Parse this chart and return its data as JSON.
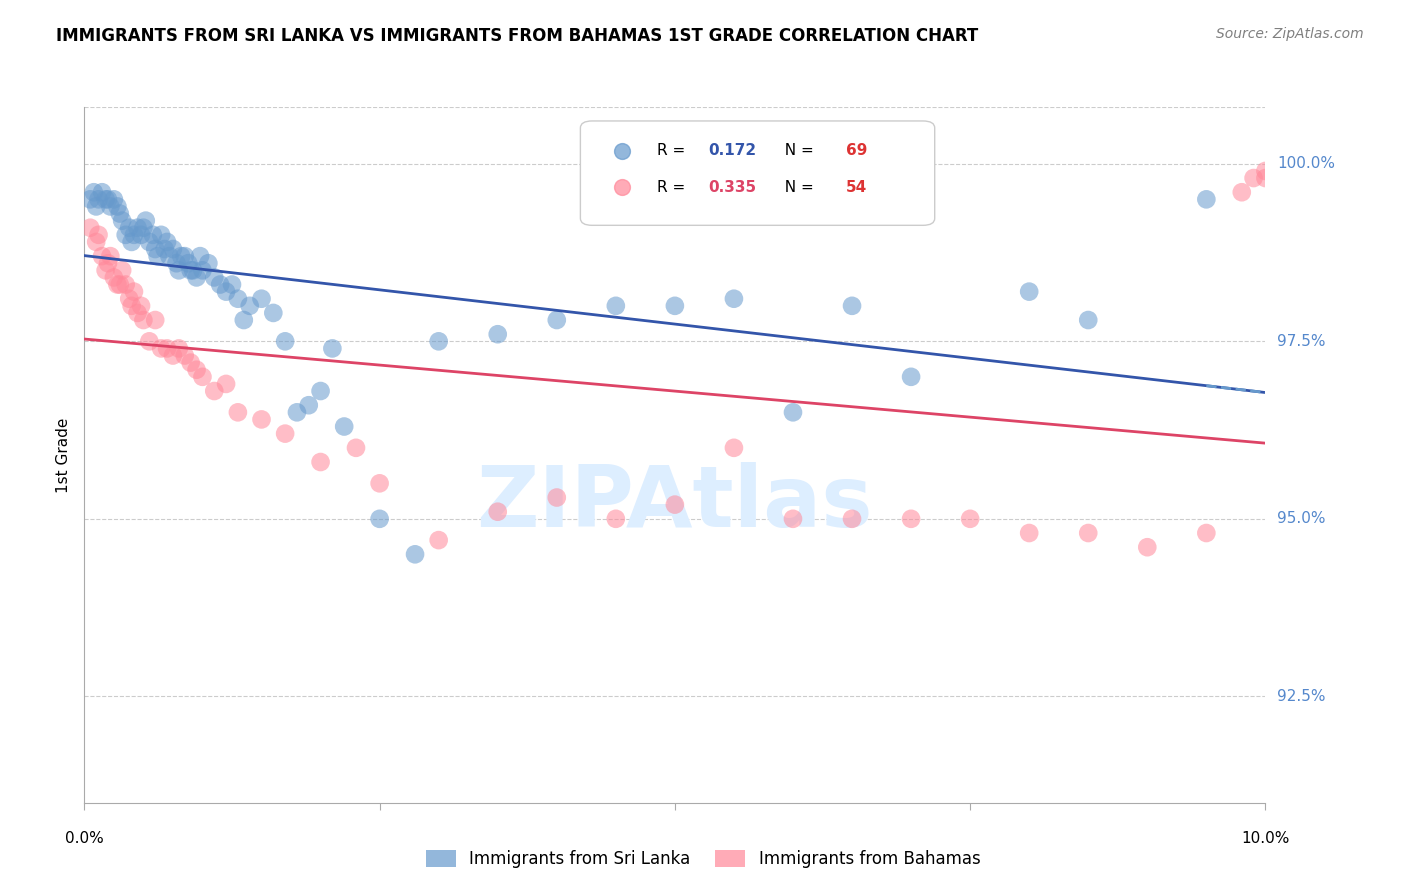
{
  "title": "IMMIGRANTS FROM SRI LANKA VS IMMIGRANTS FROM BAHAMAS 1ST GRADE CORRELATION CHART",
  "source": "Source: ZipAtlas.com",
  "ylabel": "1st Grade",
  "xlim": [
    0.0,
    10.0
  ],
  "ylim": [
    91.0,
    100.8
  ],
  "sri_lanka_R": 0.172,
  "sri_lanka_N": 69,
  "bahamas_R": 0.335,
  "bahamas_N": 54,
  "sri_lanka_color": "#6699CC",
  "bahamas_color": "#FF8899",
  "sri_lanka_line_color": "#3355AA",
  "bahamas_line_color": "#DD4466",
  "watermark_color": "#DDEEFF",
  "watermark_text": "ZIPAtlas",
  "yticks": [
    92.5,
    95.0,
    97.5,
    100.0
  ],
  "sri_lanka_x": [
    0.05,
    0.08,
    0.1,
    0.12,
    0.15,
    0.18,
    0.2,
    0.22,
    0.25,
    0.28,
    0.3,
    0.32,
    0.35,
    0.38,
    0.4,
    0.42,
    0.45,
    0.48,
    0.5,
    0.52,
    0.55,
    0.58,
    0.6,
    0.62,
    0.65,
    0.68,
    0.7,
    0.72,
    0.75,
    0.78,
    0.8,
    0.82,
    0.85,
    0.88,
    0.9,
    0.92,
    0.95,
    0.98,
    1.0,
    1.05,
    1.1,
    1.15,
    1.2,
    1.25,
    1.3,
    1.35,
    1.4,
    1.5,
    1.6,
    1.7,
    1.8,
    1.9,
    2.0,
    2.1,
    2.2,
    2.5,
    2.8,
    3.0,
    3.5,
    4.0,
    4.5,
    5.0,
    5.5,
    6.0,
    6.5,
    7.0,
    8.0,
    8.5,
    9.5
  ],
  "sri_lanka_y": [
    99.5,
    99.6,
    99.4,
    99.5,
    99.6,
    99.5,
    99.5,
    99.4,
    99.5,
    99.4,
    99.3,
    99.2,
    99.0,
    99.1,
    98.9,
    99.0,
    99.1,
    99.0,
    99.1,
    99.2,
    98.9,
    99.0,
    98.8,
    98.7,
    99.0,
    98.8,
    98.9,
    98.7,
    98.8,
    98.6,
    98.5,
    98.7,
    98.7,
    98.6,
    98.5,
    98.5,
    98.4,
    98.7,
    98.5,
    98.6,
    98.4,
    98.3,
    98.2,
    98.3,
    98.1,
    97.8,
    98.0,
    98.1,
    97.9,
    97.5,
    96.5,
    96.6,
    96.8,
    97.4,
    96.3,
    95.0,
    94.5,
    97.5,
    97.6,
    97.8,
    98.0,
    98.0,
    98.1,
    96.5,
    98.0,
    97.0,
    98.2,
    97.8,
    99.5
  ],
  "bahamas_x": [
    0.05,
    0.1,
    0.12,
    0.15,
    0.18,
    0.2,
    0.22,
    0.25,
    0.28,
    0.3,
    0.32,
    0.35,
    0.38,
    0.4,
    0.42,
    0.45,
    0.48,
    0.5,
    0.55,
    0.6,
    0.65,
    0.7,
    0.75,
    0.8,
    0.85,
    0.9,
    0.95,
    1.0,
    1.1,
    1.2,
    1.3,
    1.5,
    1.7,
    2.0,
    2.3,
    2.5,
    3.0,
    3.5,
    4.0,
    4.5,
    5.0,
    5.5,
    6.0,
    6.5,
    7.0,
    7.5,
    8.0,
    8.5,
    9.0,
    9.5,
    9.8,
    9.9,
    10.0,
    10.0
  ],
  "bahamas_y": [
    99.1,
    98.9,
    99.0,
    98.7,
    98.5,
    98.6,
    98.7,
    98.4,
    98.3,
    98.3,
    98.5,
    98.3,
    98.1,
    98.0,
    98.2,
    97.9,
    98.0,
    97.8,
    97.5,
    97.8,
    97.4,
    97.4,
    97.3,
    97.4,
    97.3,
    97.2,
    97.1,
    97.0,
    96.8,
    96.9,
    96.5,
    96.4,
    96.2,
    95.8,
    96.0,
    95.5,
    94.7,
    95.1,
    95.3,
    95.0,
    95.2,
    96.0,
    95.0,
    95.0,
    95.0,
    95.0,
    94.8,
    94.8,
    94.6,
    94.8,
    99.6,
    99.8,
    99.8,
    99.9
  ]
}
